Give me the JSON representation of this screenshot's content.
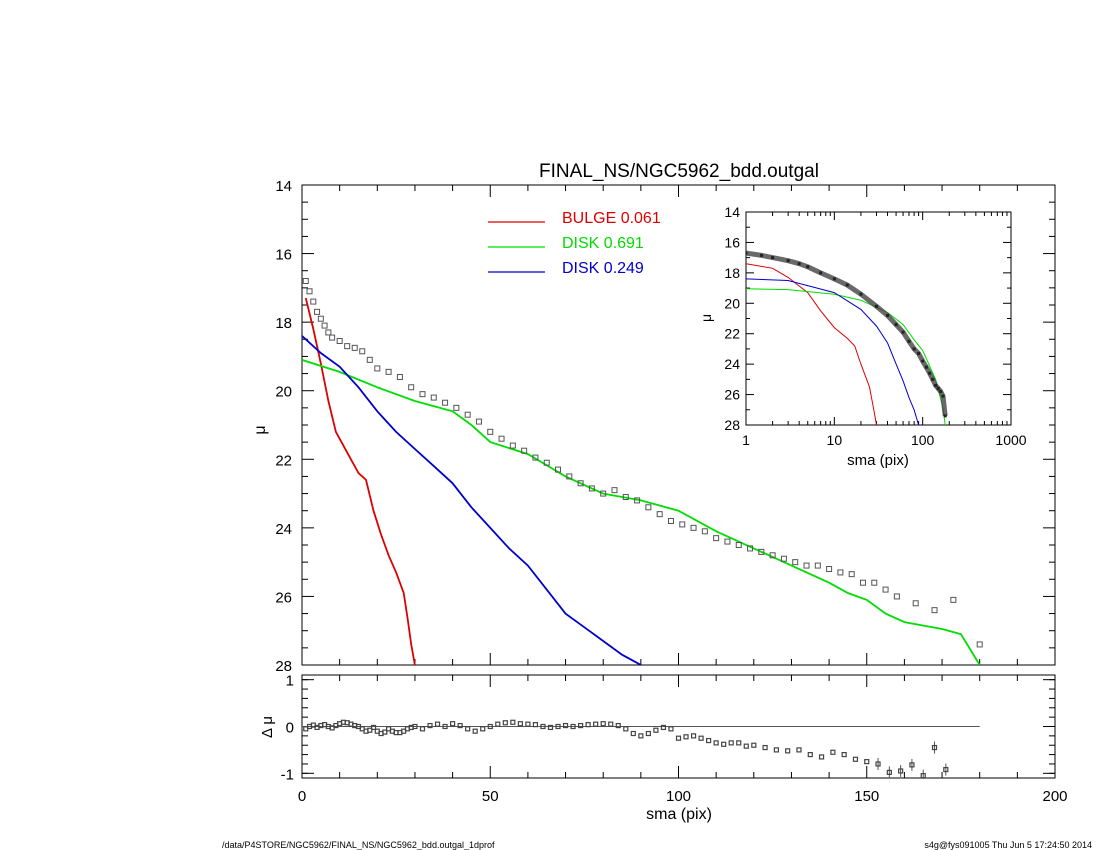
{
  "title": "FINAL_NS/NGC5962_bdd.outgal",
  "footer": {
    "left": "/data/P4STORE/NGC5962/FINAL_NS/NGC5962_bdd.outgal_1dprof",
    "right": "s4g@fys091005  Thu Jun  5 17:24:50 2014"
  },
  "colors": {
    "bulge": "#dd0000",
    "disk1": "#00dd00",
    "disk2": "#0000cc",
    "data": "#555555"
  },
  "legend": [
    {
      "name": "BULGE",
      "value": "0.061",
      "color": "#dd0000"
    },
    {
      "name": "DISK",
      "value": "0.691",
      "color": "#00dd00"
    },
    {
      "name": "DISK",
      "value": "0.249",
      "color": "#0000cc"
    }
  ],
  "chart_data": [
    {
      "id": "main",
      "type": "line",
      "xlabel": "sma (pix)",
      "ylabel": "μ",
      "xlim": [
        0,
        200
      ],
      "ylim": [
        28,
        14
      ],
      "xticks": [
        0,
        50,
        100,
        150,
        200
      ],
      "yticks": [
        14,
        16,
        18,
        20,
        22,
        24,
        26,
        28
      ],
      "series": [
        {
          "name": "BULGE",
          "color": "#dd0000",
          "x": [
            1,
            3,
            5,
            7,
            9,
            11,
            13,
            15,
            17,
            19,
            21,
            23,
            25,
            27,
            28,
            29,
            30
          ],
          "y": [
            17.3,
            18.2,
            19.2,
            20.3,
            21.2,
            21.6,
            22.0,
            22.4,
            22.6,
            23.5,
            24.2,
            24.8,
            25.3,
            25.9,
            26.6,
            27.4,
            28.0
          ]
        },
        {
          "name": "DISK",
          "color": "#00dd00",
          "x": [
            0,
            10,
            20,
            30,
            40,
            45,
            50,
            60,
            70,
            80,
            90,
            100,
            110,
            120,
            130,
            140,
            145,
            150,
            155,
            160,
            170,
            175,
            180
          ],
          "y": [
            19.1,
            19.45,
            19.9,
            20.3,
            20.6,
            21.0,
            21.5,
            21.85,
            22.5,
            23.0,
            23.2,
            23.5,
            24.1,
            24.6,
            25.1,
            25.6,
            25.9,
            26.1,
            26.5,
            26.75,
            26.95,
            27.1,
            28.0
          ]
        },
        {
          "name": "DISK",
          "color": "#0000cc",
          "x": [
            0,
            5,
            10,
            15,
            20,
            25,
            30,
            35,
            40,
            45,
            50,
            55,
            60,
            65,
            70,
            75,
            80,
            85,
            90
          ],
          "y": [
            18.4,
            18.9,
            19.3,
            19.9,
            20.6,
            21.2,
            21.7,
            22.2,
            22.7,
            23.4,
            24.0,
            24.6,
            25.1,
            25.8,
            26.5,
            26.9,
            27.3,
            27.7,
            28.0
          ]
        },
        {
          "name": "",
          "type": "scatter",
          "x": [
            1,
            2,
            3,
            4,
            5,
            6,
            7,
            8,
            10,
            12,
            14,
            16,
            18,
            20,
            23,
            26,
            29,
            32,
            35,
            38,
            41,
            44,
            47,
            50,
            53,
            56,
            59,
            62,
            65,
            68,
            71,
            74,
            77,
            80,
            83,
            86,
            89,
            92,
            95,
            98,
            101,
            104,
            107,
            110,
            113,
            116,
            119,
            122,
            125,
            128,
            131,
            134,
            137,
            140,
            143,
            146,
            149,
            152,
            155,
            158,
            163,
            168,
            173,
            180
          ],
          "y": [
            16.8,
            17.1,
            17.4,
            17.7,
            17.9,
            18.1,
            18.3,
            18.45,
            18.55,
            18.7,
            18.75,
            18.85,
            19.1,
            19.35,
            19.45,
            19.6,
            19.9,
            20.1,
            20.2,
            20.35,
            20.5,
            20.7,
            20.9,
            21.2,
            21.4,
            21.6,
            21.75,
            21.95,
            22.1,
            22.3,
            22.5,
            22.7,
            22.85,
            23.0,
            22.9,
            23.1,
            23.2,
            23.4,
            23.6,
            23.8,
            23.9,
            24.0,
            24.1,
            24.3,
            24.4,
            24.5,
            24.6,
            24.7,
            24.8,
            24.9,
            25.0,
            25.1,
            25.1,
            25.2,
            25.3,
            25.35,
            25.6,
            25.6,
            25.8,
            26.0,
            26.2,
            26.4,
            26.1,
            27.4
          ]
        }
      ]
    },
    {
      "id": "residual",
      "type": "scatter",
      "xlabel": "sma (pix)",
      "ylabel": "Δ μ",
      "xlim": [
        0,
        200
      ],
      "ylim": [
        -1.1,
        1.1
      ],
      "yticks": [
        1,
        0,
        -1
      ],
      "zero_line": {
        "x": [
          0,
          180
        ]
      },
      "x": [
        1,
        2,
        3,
        4,
        5,
        6,
        7,
        8,
        9,
        10,
        11,
        12,
        13,
        14,
        15,
        16,
        17,
        18,
        19,
        20,
        21,
        22,
        23,
        24,
        25,
        26,
        27,
        28,
        29,
        30,
        32,
        34,
        36,
        38,
        40,
        42,
        44,
        46,
        48,
        50,
        52,
        54,
        56,
        58,
        60,
        62,
        64,
        66,
        68,
        70,
        72,
        74,
        76,
        78,
        80,
        82,
        84,
        86,
        88,
        90,
        92,
        94,
        96,
        98,
        100,
        102,
        104,
        106,
        108,
        110,
        112,
        114,
        116,
        118,
        120,
        123,
        126,
        129,
        132,
        135,
        138,
        141,
        144,
        147,
        150,
        153,
        156,
        159,
        162,
        165,
        168,
        171
      ],
      "y": [
        -0.05,
        0.0,
        0.03,
        -0.02,
        0.02,
        0.04,
        0.0,
        -0.03,
        0.02,
        0.06,
        0.09,
        0.08,
        0.05,
        0.02,
        0.0,
        -0.05,
        -0.1,
        -0.08,
        -0.02,
        -0.1,
        -0.15,
        -0.12,
        -0.05,
        -0.1,
        -0.13,
        -0.13,
        -0.1,
        -0.05,
        -0.02,
        0.0,
        -0.05,
        0.02,
        0.05,
        0.0,
        0.06,
        0.02,
        -0.05,
        -0.1,
        -0.05,
        0.0,
        0.05,
        0.08,
        0.09,
        0.06,
        0.05,
        0.04,
        0.0,
        -0.02,
        0.0,
        0.02,
        0.0,
        0.02,
        0.04,
        0.05,
        0.06,
        0.05,
        0.02,
        -0.05,
        -0.15,
        -0.2,
        -0.15,
        -0.08,
        -0.02,
        -0.05,
        -0.25,
        -0.22,
        -0.2,
        -0.25,
        -0.3,
        -0.35,
        -0.38,
        -0.35,
        -0.35,
        -0.42,
        -0.4,
        -0.45,
        -0.5,
        -0.52,
        -0.5,
        -0.6,
        -0.65,
        -0.55,
        -0.6,
        -0.7,
        -0.75,
        -0.8,
        -0.98,
        -0.95,
        -0.82,
        -1.05,
        -0.45,
        -0.92
      ]
    },
    {
      "id": "inset",
      "type": "line",
      "xlabel": "sma (pix)",
      "ylabel": "μ",
      "xscale": "log",
      "xlim": [
        1,
        1000
      ],
      "ylim": [
        28,
        14
      ],
      "xticks": [
        1,
        10,
        100,
        1000
      ],
      "yticks": [
        14,
        16,
        18,
        20,
        22,
        24,
        26,
        28
      ],
      "series": [
        {
          "name": "BULGE",
          "color": "#dd0000",
          "x": [
            1,
            2,
            3,
            5,
            7,
            10,
            14,
            17,
            20,
            25,
            28,
            30
          ],
          "y": [
            17.4,
            17.7,
            18.3,
            19.3,
            20.5,
            21.6,
            22.3,
            22.8,
            24.0,
            25.5,
            27.0,
            28.0
          ]
        },
        {
          "name": "DISK",
          "color": "#00dd00",
          "x": [
            1,
            3,
            10,
            20,
            40,
            60,
            80,
            100,
            140,
            170,
            180
          ],
          "y": [
            19.05,
            19.1,
            19.4,
            19.8,
            20.6,
            21.4,
            22.4,
            23.1,
            25.0,
            26.9,
            28.0
          ]
        },
        {
          "name": "DISK",
          "color": "#0000cc",
          "x": [
            1,
            3,
            10,
            20,
            30,
            40,
            50,
            60,
            70,
            80,
            90
          ],
          "y": [
            18.4,
            18.5,
            19.3,
            20.4,
            21.5,
            22.6,
            24.0,
            25.1,
            26.2,
            27.0,
            28.0
          ]
        },
        {
          "name": "",
          "type": "scatter",
          "x": [
            1,
            1.5,
            2,
            3,
            4,
            5,
            7,
            10,
            14,
            20,
            30,
            40,
            50,
            60,
            70,
            80,
            90,
            100,
            110,
            120,
            130,
            140,
            150,
            160,
            170,
            180
          ],
          "y": [
            16.7,
            16.85,
            17.0,
            17.2,
            17.4,
            17.6,
            18.0,
            18.4,
            18.8,
            19.4,
            20.2,
            20.8,
            21.4,
            21.9,
            22.5,
            23.0,
            23.3,
            23.8,
            24.2,
            24.6,
            25.0,
            25.4,
            25.6,
            25.8,
            26.1,
            27.4
          ]
        }
      ]
    }
  ]
}
